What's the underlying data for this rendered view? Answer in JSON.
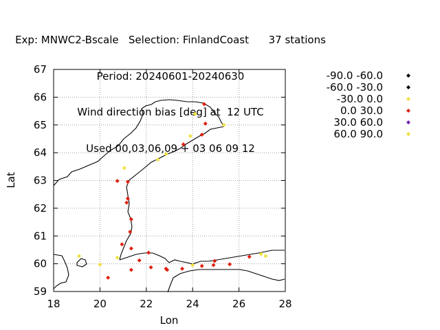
{
  "chart_data": {
    "type": "scatter",
    "title": {
      "line1": "Exp: MNWC2-Bscale   Selection: FinlandCoast      37 stations",
      "line2": "Period: 20240601-20240630",
      "line3": "Wind direction bias [deg] at  12 UTC",
      "line4": "Used 00,03,06,09 + 03 06 09 12"
    },
    "xlabel": "Lon",
    "ylabel": "Lat",
    "xlim": [
      18,
      28
    ],
    "ylim": [
      59,
      67
    ],
    "xticks": [
      18,
      20,
      22,
      24,
      26,
      28
    ],
    "yticks": [
      59,
      60,
      61,
      62,
      63,
      64,
      65,
      66,
      67
    ],
    "grid": true,
    "legend_position": "right",
    "classes": [
      {
        "label": "-90.0 -60.0",
        "color": "#000000"
      },
      {
        "label": "-60.0 -30.0",
        "color": "#000000"
      },
      {
        "label": "-30.0 0.0",
        "color": "#f0e040"
      },
      {
        "label": "0.0 30.0",
        "color": "#e02010"
      },
      {
        "label": "30.0 60.0",
        "color": "#7020b0"
      },
      {
        "label": "60.0 90.0",
        "color": "#f0e040"
      }
    ],
    "points": [
      {
        "lon": 24.5,
        "lat": 65.75,
        "cls": 3
      },
      {
        "lon": 24.1,
        "lat": 65.4,
        "cls": 2
      },
      {
        "lon": 24.55,
        "lat": 65.05,
        "cls": 3
      },
      {
        "lon": 25.35,
        "lat": 65.0,
        "cls": 2
      },
      {
        "lon": 23.9,
        "lat": 64.6,
        "cls": 2
      },
      {
        "lon": 24.4,
        "lat": 64.65,
        "cls": 3
      },
      {
        "lon": 23.6,
        "lat": 64.3,
        "cls": 3
      },
      {
        "lon": 22.85,
        "lat": 63.95,
        "cls": 2
      },
      {
        "lon": 22.5,
        "lat": 63.75,
        "cls": 2
      },
      {
        "lon": 21.05,
        "lat": 63.45,
        "cls": 2
      },
      {
        "lon": 20.75,
        "lat": 62.98,
        "cls": 3
      },
      {
        "lon": 21.2,
        "lat": 62.95,
        "cls": 3
      },
      {
        "lon": 21.2,
        "lat": 62.35,
        "cls": 3
      },
      {
        "lon": 21.15,
        "lat": 62.2,
        "cls": 3
      },
      {
        "lon": 21.35,
        "lat": 61.6,
        "cls": 3
      },
      {
        "lon": 21.3,
        "lat": 61.15,
        "cls": 3
      },
      {
        "lon": 20.95,
        "lat": 60.7,
        "cls": 3
      },
      {
        "lon": 21.35,
        "lat": 60.55,
        "cls": 3
      },
      {
        "lon": 19.1,
        "lat": 60.28,
        "cls": 2
      },
      {
        "lon": 20.0,
        "lat": 59.97,
        "cls": 2
      },
      {
        "lon": 20.75,
        "lat": 60.22,
        "cls": 2
      },
      {
        "lon": 20.35,
        "lat": 59.5,
        "cls": 3
      },
      {
        "lon": 21.35,
        "lat": 59.78,
        "cls": 3
      },
      {
        "lon": 21.7,
        "lat": 60.12,
        "cls": 3
      },
      {
        "lon": 22.1,
        "lat": 60.4,
        "cls": 3
      },
      {
        "lon": 22.2,
        "lat": 59.87,
        "cls": 3
      },
      {
        "lon": 22.85,
        "lat": 59.82,
        "cls": 3
      },
      {
        "lon": 22.9,
        "lat": 59.78,
        "cls": 3
      },
      {
        "lon": 23.55,
        "lat": 59.82,
        "cls": 3
      },
      {
        "lon": 24.0,
        "lat": 59.95,
        "cls": 2
      },
      {
        "lon": 24.4,
        "lat": 59.92,
        "cls": 3
      },
      {
        "lon": 24.95,
        "lat": 60.1,
        "cls": 3
      },
      {
        "lon": 24.9,
        "lat": 59.95,
        "cls": 3
      },
      {
        "lon": 25.6,
        "lat": 59.98,
        "cls": 3
      },
      {
        "lon": 26.45,
        "lat": 60.25,
        "cls": 3
      },
      {
        "lon": 26.95,
        "lat": 60.35,
        "cls": 2
      },
      {
        "lon": 27.15,
        "lat": 60.28,
        "cls": 2
      }
    ]
  }
}
